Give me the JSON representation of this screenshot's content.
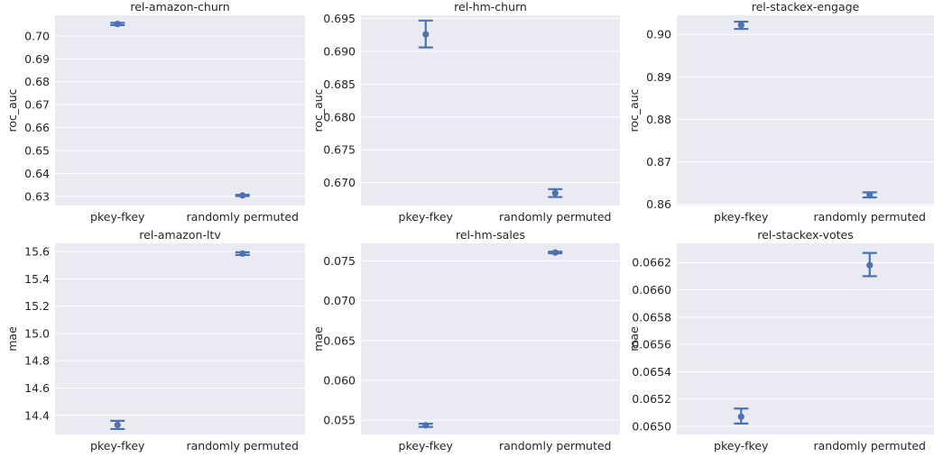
{
  "chart_data": [
    {
      "type": "pointplot",
      "title": "rel-amazon-churn",
      "ylabel": "roc_auc",
      "categories": [
        "pkey-fkey",
        "randomly permuted"
      ],
      "ylim": [
        0.626,
        0.709
      ],
      "yticks": [
        0.63,
        0.64,
        0.65,
        0.66,
        0.67,
        0.68,
        0.69,
        0.7
      ],
      "ytick_labels": [
        "0.63",
        "0.64",
        "0.65",
        "0.66",
        "0.67",
        "0.68",
        "0.69",
        "0.70"
      ],
      "points": [
        {
          "category": "pkey-fkey",
          "y": 0.7052,
          "lo": 0.7047,
          "hi": 0.7057
        },
        {
          "category": "randomly permuted",
          "y": 0.6304,
          "lo": 0.6301,
          "hi": 0.6307
        }
      ]
    },
    {
      "type": "pointplot",
      "title": "rel-hm-churn",
      "ylabel": "roc_auc",
      "categories": [
        "pkey-fkey",
        "randomly permuted"
      ],
      "ylim": [
        0.6665,
        0.6955
      ],
      "yticks": [
        0.67,
        0.675,
        0.68,
        0.685,
        0.69,
        0.695
      ],
      "ytick_labels": [
        "0.670",
        "0.675",
        "0.680",
        "0.685",
        "0.690",
        "0.695"
      ],
      "points": [
        {
          "category": "pkey-fkey",
          "y": 0.6926,
          "lo": 0.6906,
          "hi": 0.6947
        },
        {
          "category": "randomly permuted",
          "y": 0.6684,
          "lo": 0.6678,
          "hi": 0.669
        }
      ]
    },
    {
      "type": "pointplot",
      "title": "rel-stackex-engage",
      "ylabel": "roc_auc",
      "categories": [
        "pkey-fkey",
        "randomly permuted"
      ],
      "ylim": [
        0.8597,
        0.9045
      ],
      "yticks": [
        0.86,
        0.87,
        0.88,
        0.89,
        0.9
      ],
      "ytick_labels": [
        "0.86",
        "0.87",
        "0.88",
        "0.89",
        "0.90"
      ],
      "points": [
        {
          "category": "pkey-fkey",
          "y": 0.9022,
          "lo": 0.9013,
          "hi": 0.903
        },
        {
          "category": "randomly permuted",
          "y": 0.8622,
          "lo": 0.8616,
          "hi": 0.8628
        }
      ]
    },
    {
      "type": "pointplot",
      "title": "rel-amazon-ltv",
      "ylabel": "mae",
      "categories": [
        "pkey-fkey",
        "randomly permuted"
      ],
      "ylim": [
        14.26,
        15.66
      ],
      "yticks": [
        14.4,
        14.6,
        14.8,
        15.0,
        15.2,
        15.4,
        15.6
      ],
      "ytick_labels": [
        "14.4",
        "14.6",
        "14.8",
        "15.0",
        "15.2",
        "15.4",
        "15.6"
      ],
      "points": [
        {
          "category": "pkey-fkey",
          "y": 14.33,
          "lo": 14.3,
          "hi": 14.36
        },
        {
          "category": "randomly permuted",
          "y": 15.585,
          "lo": 15.575,
          "hi": 15.595
        }
      ]
    },
    {
      "type": "pointplot",
      "title": "rel-hm-sales",
      "ylabel": "mae",
      "categories": [
        "pkey-fkey",
        "randomly permuted"
      ],
      "ylim": [
        0.0532,
        0.0772
      ],
      "yticks": [
        0.055,
        0.06,
        0.065,
        0.07,
        0.075
      ],
      "ytick_labels": [
        "0.055",
        "0.060",
        "0.065",
        "0.070",
        "0.075"
      ],
      "points": [
        {
          "category": "pkey-fkey",
          "y": 0.05435,
          "lo": 0.05415,
          "hi": 0.05455
        },
        {
          "category": "randomly permuted",
          "y": 0.07605,
          "lo": 0.07595,
          "hi": 0.07615
        }
      ]
    },
    {
      "type": "pointplot",
      "title": "rel-stackex-votes",
      "ylabel": "mae",
      "categories": [
        "pkey-fkey",
        "randomly permuted"
      ],
      "ylim": [
        0.06494,
        0.06634
      ],
      "yticks": [
        0.065,
        0.0652,
        0.0654,
        0.0656,
        0.0658,
        0.066,
        0.0662
      ],
      "ytick_labels": [
        "0.0650",
        "0.0652",
        "0.0654",
        "0.0656",
        "0.0658",
        "0.0660",
        "0.0662"
      ],
      "points": [
        {
          "category": "pkey-fkey",
          "y": 0.06507,
          "lo": 0.06502,
          "hi": 0.06513
        },
        {
          "category": "randomly permuted",
          "y": 0.06618,
          "lo": 0.0661,
          "hi": 0.06627
        }
      ]
    }
  ],
  "colors": {
    "point": "#4c72b0",
    "axes_background": "#eaeaf2",
    "grid": "#ffffff",
    "text": "#262626"
  }
}
